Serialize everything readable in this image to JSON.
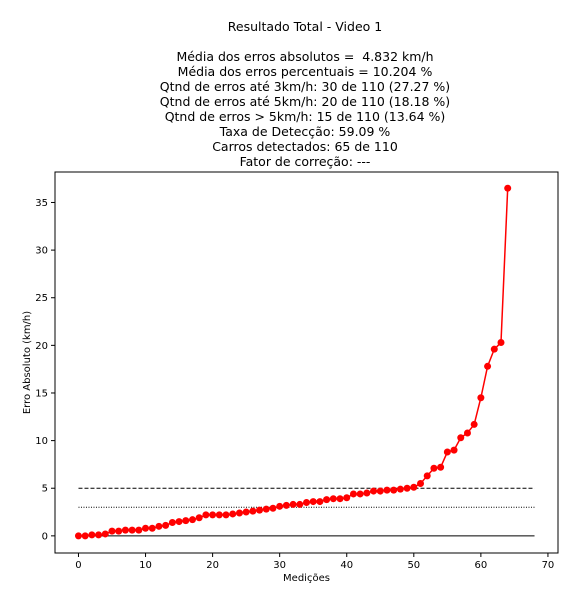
{
  "title_lines": [
    "Resultado Total - Video 1",
    "",
    "Média dos erros absolutos =  4.832 km/h",
    "Média dos erros percentuais = 10.204 %",
    "Qtnd de erros até 3km/h: 30 de 110 (27.27 %)",
    "Qtnd de erros até 5km/h: 20 de 110 (18.18 %)",
    "Qtnd de erros > 5km/h: 15 de 110 (13.64 %)",
    "Taxa de Detecção: 59.09 %",
    "Carros detectados: 65 de 110",
    "Fator de correção: ---"
  ],
  "chart_data": {
    "type": "line",
    "xlabel": "Medições",
    "ylabel": "Erro Absoluto (km/h)",
    "xlim": [
      -3.5,
      71.5
    ],
    "ylim": [
      -1.8,
      38.2
    ],
    "xticks": [
      0,
      10,
      20,
      30,
      40,
      50,
      60,
      70
    ],
    "yticks": [
      0,
      5,
      10,
      15,
      20,
      25,
      30,
      35
    ],
    "grid": false,
    "series": [
      {
        "color": "#ff0000",
        "marker": "circle",
        "x": [
          0,
          1,
          2,
          3,
          4,
          5,
          6,
          7,
          8,
          9,
          10,
          11,
          12,
          13,
          14,
          15,
          16,
          17,
          18,
          19,
          20,
          21,
          22,
          23,
          24,
          25,
          26,
          27,
          28,
          29,
          30,
          31,
          32,
          33,
          34,
          35,
          36,
          37,
          38,
          39,
          40,
          41,
          42,
          43,
          44,
          45,
          46,
          47,
          48,
          49,
          50,
          51,
          52,
          53,
          54,
          55,
          56,
          57,
          58,
          59,
          60,
          61,
          62,
          63,
          64
        ],
        "values": [
          0.0,
          0.0,
          0.1,
          0.1,
          0.2,
          0.5,
          0.5,
          0.6,
          0.6,
          0.6,
          0.8,
          0.8,
          1.0,
          1.1,
          1.4,
          1.5,
          1.6,
          1.7,
          1.9,
          2.2,
          2.2,
          2.2,
          2.2,
          2.3,
          2.4,
          2.5,
          2.6,
          2.7,
          2.8,
          2.9,
          3.1,
          3.2,
          3.3,
          3.3,
          3.5,
          3.6,
          3.6,
          3.8,
          3.9,
          3.9,
          4.0,
          4.4,
          4.4,
          4.5,
          4.7,
          4.7,
          4.8,
          4.8,
          4.9,
          5.0,
          5.1,
          5.5,
          6.3,
          7.1,
          7.2,
          8.8,
          9.0,
          10.3,
          10.8,
          11.7,
          14.5,
          17.8,
          19.6,
          20.3,
          36.5
        ]
      }
    ],
    "reference_lines": [
      {
        "y": 5,
        "style": "dashed",
        "color": "#000000",
        "xrange": [
          0,
          68
        ]
      },
      {
        "y": 3,
        "style": "dotted",
        "color": "#000000",
        "xrange": [
          0,
          68
        ]
      },
      {
        "y": 0,
        "style": "solid",
        "color": "#000000",
        "xrange": [
          0,
          68
        ]
      }
    ]
  }
}
